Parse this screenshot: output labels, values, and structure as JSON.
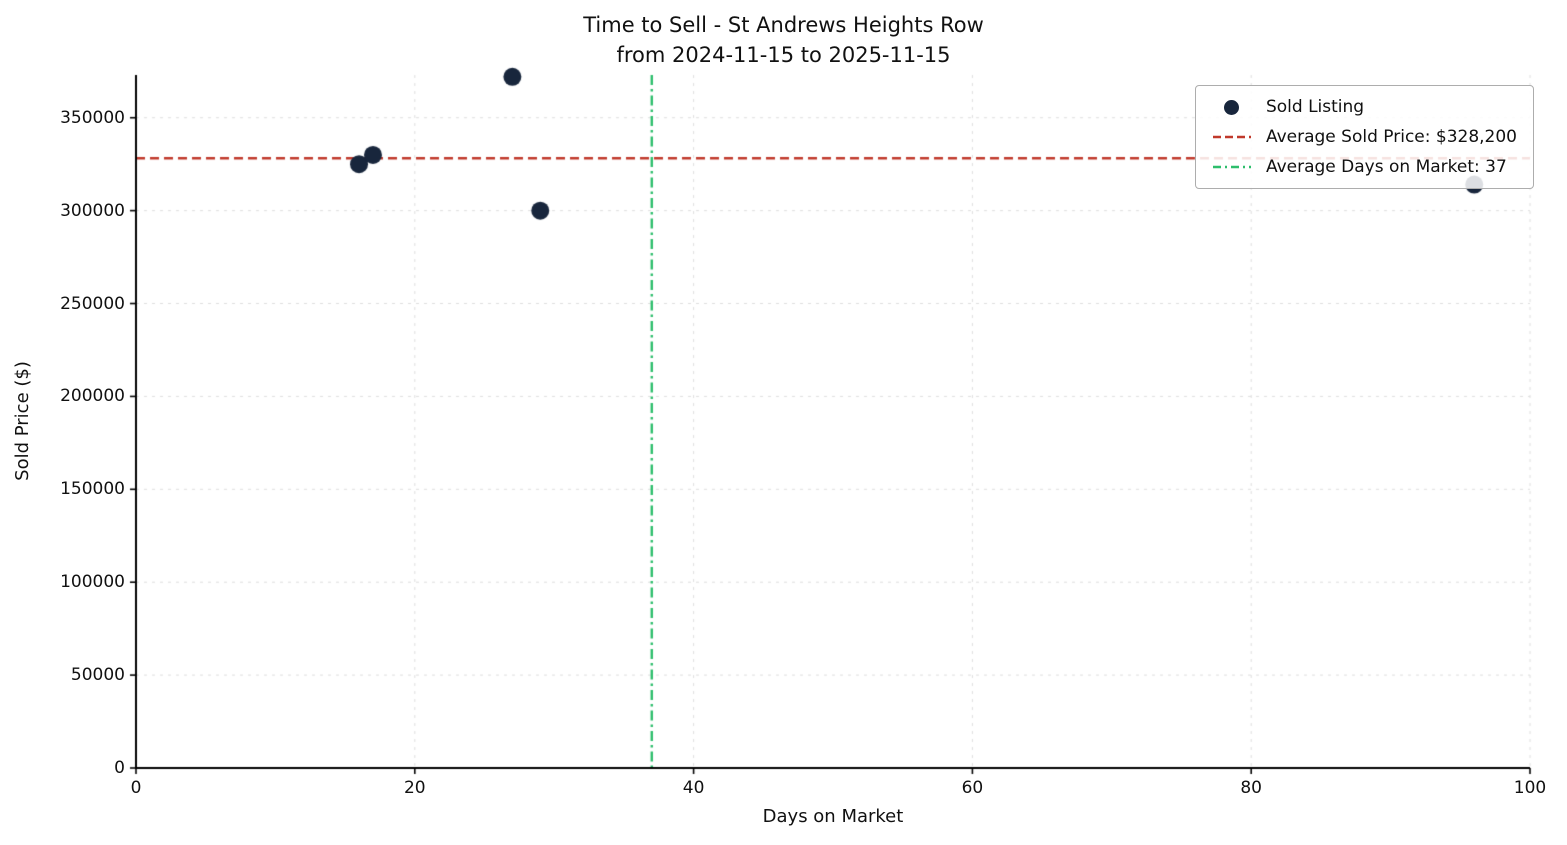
{
  "chart_data": {
    "type": "scatter",
    "title": "Time to Sell - St Andrews Heights Row",
    "subtitle": "from 2024-11-15 to 2025-11-15",
    "xlabel": "Days on Market",
    "ylabel": "Sold Price ($)",
    "xlim": [
      0,
      100
    ],
    "ylim": [
      0,
      373000
    ],
    "x_ticks": [
      0,
      20,
      40,
      60,
      80,
      100
    ],
    "y_ticks": [
      0,
      50000,
      100000,
      150000,
      200000,
      250000,
      300000,
      350000
    ],
    "grid": true,
    "legend_position": "upper right",
    "points": [
      {
        "x": 16,
        "y": 325000
      },
      {
        "x": 17,
        "y": 330000
      },
      {
        "x": 27,
        "y": 372000
      },
      {
        "x": 29,
        "y": 300000
      },
      {
        "x": 96,
        "y": 314000
      }
    ],
    "average_sold_price": 328200,
    "average_days_on_market": 37,
    "legend": [
      {
        "label": "Sold Listing",
        "marker": "dot"
      },
      {
        "label": "Average Sold Price: $328,200",
        "marker": "dashed-line"
      },
      {
        "label": "Average Days on Market: 37",
        "marker": "dashdot-line"
      }
    ],
    "colors": {
      "point": "#18263c",
      "avg_price_line": "#c0392b",
      "avg_days_line": "#2dbe6c",
      "grid": "#dedede",
      "axis": "#000000"
    }
  }
}
